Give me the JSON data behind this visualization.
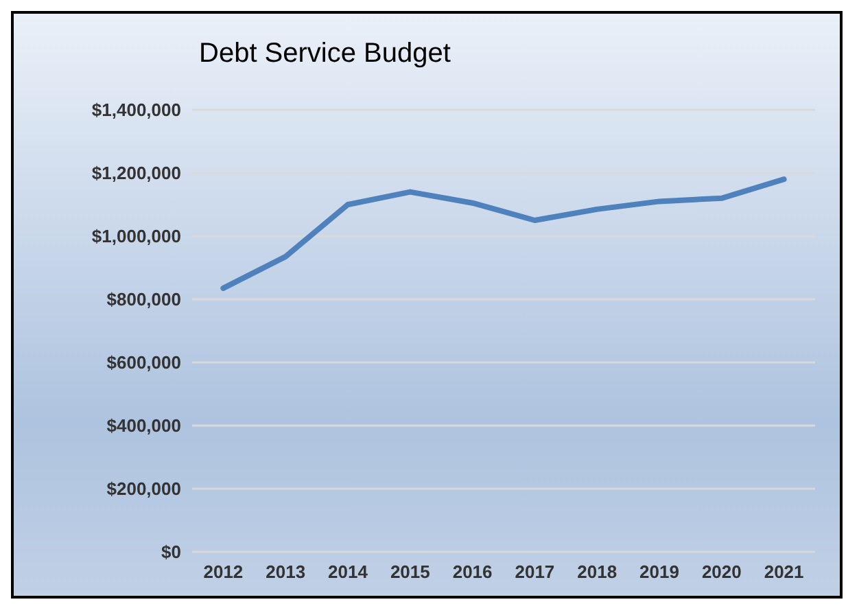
{
  "chart_data": {
    "type": "line",
    "title": "Debt Service Budget",
    "categories": [
      "2012",
      "2013",
      "2014",
      "2015",
      "2016",
      "2017",
      "2018",
      "2019",
      "2020",
      "2021"
    ],
    "series": [
      {
        "color": "#4f81bd",
        "values": [
          835000,
          935000,
          1100000,
          1140000,
          1105000,
          1050000,
          1085000,
          1110000,
          1120000,
          1180000
        ]
      }
    ],
    "ylim": [
      0,
      1400000
    ],
    "yticks": [
      {
        "value": 0,
        "label": "$0"
      },
      {
        "value": 200000,
        "label": "$200,000"
      },
      {
        "value": 400000,
        "label": "$400,000"
      },
      {
        "value": 600000,
        "label": "$600,000"
      },
      {
        "value": 800000,
        "label": "$800,000"
      },
      {
        "value": 1000000,
        "label": "$1,000,000"
      },
      {
        "value": 1200000,
        "label": "$1,200,000"
      },
      {
        "value": 1400000,
        "label": "$1,400,000"
      }
    ],
    "grid": "y",
    "marker": "none",
    "line_style": "solid"
  }
}
